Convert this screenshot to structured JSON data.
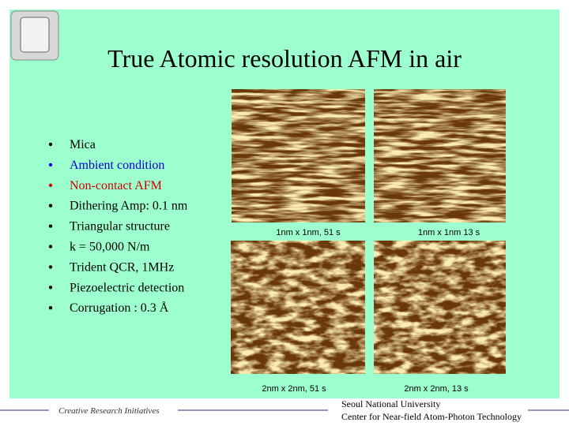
{
  "slide": {
    "title": "True Atomic resolution AFM in air",
    "bullets": [
      {
        "text": "Mica",
        "color": "#000000"
      },
      {
        "text": "Ambient condition",
        "color": "#0000cc"
      },
      {
        "text": "Non-contact AFM",
        "color": "#cc0000"
      },
      {
        "text": "Dithering Amp: 0.1 nm",
        "color": "#000000"
      },
      {
        "text": "Triangular structure",
        "color": "#000000"
      },
      {
        "text": "k = 50,000 N/m",
        "color": "#000000"
      },
      {
        "text": "Trident QCR, 1MHz",
        "color": "#000000"
      },
      {
        "text": "Piezoelectric detection",
        "color": "#000000"
      },
      {
        "text": "Corrugation : 0.3 Å",
        "color": "#000000"
      }
    ],
    "images": [
      {
        "caption": "1nm x 1nm, 51 s"
      },
      {
        "caption": "1nm x 1nm 13 s"
      },
      {
        "caption": "2nm x 2nm, 51 s"
      },
      {
        "caption": "2nm x 2nm, 13 s"
      }
    ],
    "footer": {
      "left": "Creative Research Initiatives",
      "university": "Seoul National University",
      "center": "Center for Near-field Atom-Photon Technology"
    }
  }
}
